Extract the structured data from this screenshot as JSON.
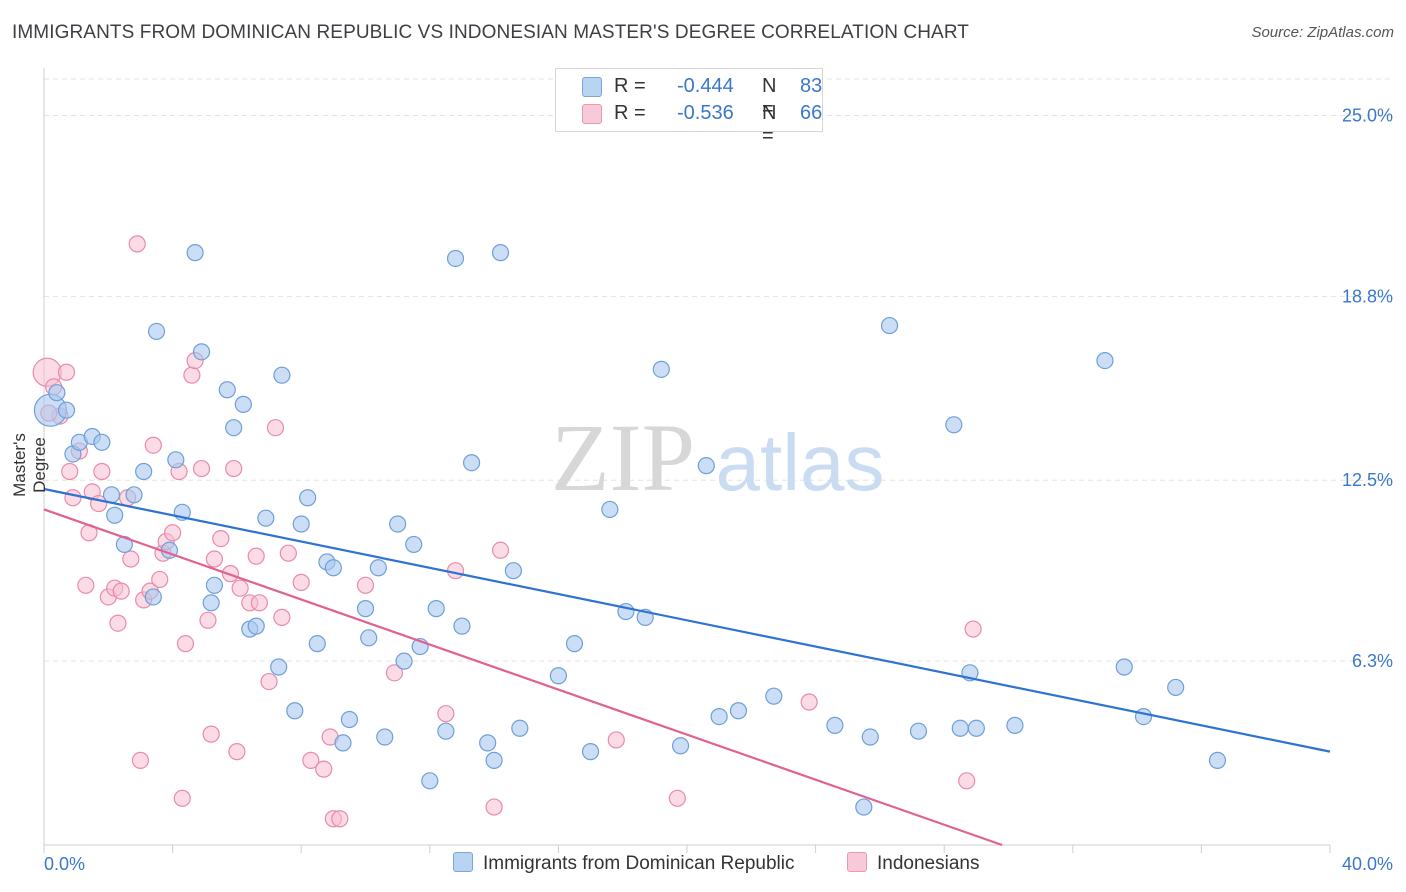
{
  "header": {
    "title": "IMMIGRANTS FROM DOMINICAN REPUBLIC VS INDONESIAN MASTER'S DEGREE CORRELATION CHART",
    "source": "Source: ZipAtlas.com"
  },
  "watermark": {
    "zip": "ZIP",
    "atlas": "atlas"
  },
  "legend": {
    "blue": {
      "r_label": "R =",
      "r_value": "-0.444",
      "n_label": "N =",
      "n_value": "83"
    },
    "pink": {
      "r_label": "R =",
      "r_value": "-0.536",
      "n_label": "N =",
      "n_value": "66"
    }
  },
  "colors": {
    "blue_fill": "#a9c8ee",
    "blue_stroke": "#6f9fd8",
    "blue_line": "#2e72d2",
    "pink_fill": "#f7bfd2",
    "pink_stroke": "#e98aab",
    "pink_line": "#e0628f",
    "grid": "#e3e3e3",
    "tick_text": "#3a78c9"
  },
  "chart_data": {
    "type": "scatter",
    "title": "IMMIGRANTS FROM DOMINICAN REPUBLIC VS INDONESIAN MASTER'S DEGREE CORRELATION CHART",
    "xlabel": "",
    "ylabel": "Master's Degree",
    "xlim": [
      0,
      40
    ],
    "ylim": [
      0,
      25.0
    ],
    "x_tick_labels": [
      "0.0%",
      "40.0%"
    ],
    "y_ticks": [
      6.3,
      12.5,
      18.8,
      25.0
    ],
    "y_tick_labels": [
      "6.3%",
      "12.5%",
      "18.8%",
      "25.0%"
    ],
    "grid": true,
    "legend_position": "top-center",
    "series": [
      {
        "name": "Immigrants from Dominican Republic",
        "r": -0.444,
        "n": 83,
        "trend": {
          "x": [
            0,
            40
          ],
          "y": [
            12.2,
            3.2
          ]
        },
        "points": [
          [
            0.2,
            14.9
          ],
          [
            0.4,
            15.5
          ],
          [
            0.7,
            14.9
          ],
          [
            0.9,
            13.4
          ],
          [
            1.1,
            13.8
          ],
          [
            1.5,
            14.0
          ],
          [
            1.8,
            13.8
          ],
          [
            2.1,
            12.0
          ],
          [
            2.2,
            11.3
          ],
          [
            2.5,
            10.3
          ],
          [
            2.8,
            12.0
          ],
          [
            3.1,
            12.8
          ],
          [
            3.4,
            8.5
          ],
          [
            3.5,
            17.6
          ],
          [
            3.9,
            10.1
          ],
          [
            4.1,
            13.2
          ],
          [
            4.3,
            11.4
          ],
          [
            4.7,
            20.3
          ],
          [
            4.9,
            16.9
          ],
          [
            5.2,
            8.3
          ],
          [
            5.3,
            8.9
          ],
          [
            5.7,
            15.6
          ],
          [
            5.9,
            14.3
          ],
          [
            6.2,
            15.1
          ],
          [
            6.4,
            7.4
          ],
          [
            6.6,
            7.5
          ],
          [
            6.9,
            11.2
          ],
          [
            7.3,
            6.1
          ],
          [
            7.4,
            16.1
          ],
          [
            7.8,
            4.6
          ],
          [
            8.0,
            11.0
          ],
          [
            8.2,
            11.9
          ],
          [
            8.5,
            6.9
          ],
          [
            8.8,
            9.7
          ],
          [
            9.0,
            9.5
          ],
          [
            9.3,
            3.5
          ],
          [
            9.5,
            4.3
          ],
          [
            10.0,
            8.1
          ],
          [
            10.1,
            7.1
          ],
          [
            10.4,
            9.5
          ],
          [
            10.6,
            3.7
          ],
          [
            11.0,
            11.0
          ],
          [
            11.2,
            6.3
          ],
          [
            11.5,
            10.3
          ],
          [
            11.7,
            6.8
          ],
          [
            12.0,
            2.2
          ],
          [
            12.2,
            8.1
          ],
          [
            12.5,
            3.9
          ],
          [
            12.8,
            20.1
          ],
          [
            13.0,
            7.5
          ],
          [
            13.3,
            13.1
          ],
          [
            13.8,
            3.5
          ],
          [
            14.0,
            2.9
          ],
          [
            14.2,
            20.3
          ],
          [
            14.6,
            9.4
          ],
          [
            14.8,
            4.0
          ],
          [
            16.0,
            5.8
          ],
          [
            16.5,
            6.9
          ],
          [
            17.0,
            3.2
          ],
          [
            17.6,
            11.5
          ],
          [
            18.1,
            8.0
          ],
          [
            18.7,
            7.8
          ],
          [
            19.2,
            16.3
          ],
          [
            19.8,
            3.4
          ],
          [
            20.6,
            13.0
          ],
          [
            21.0,
            4.4
          ],
          [
            21.6,
            4.6
          ],
          [
            22.7,
            5.1
          ],
          [
            24.6,
            4.1
          ],
          [
            25.5,
            1.3
          ],
          [
            25.7,
            3.7
          ],
          [
            26.3,
            17.8
          ],
          [
            27.2,
            3.9
          ],
          [
            28.3,
            14.4
          ],
          [
            28.5,
            4.0
          ],
          [
            28.8,
            5.9
          ],
          [
            29.0,
            4.0
          ],
          [
            30.2,
            4.1
          ],
          [
            33.0,
            16.6
          ],
          [
            33.6,
            6.1
          ],
          [
            34.2,
            4.4
          ],
          [
            35.2,
            5.4
          ],
          [
            36.5,
            2.9
          ]
        ]
      },
      {
        "name": "Indonesians",
        "r": -0.536,
        "n": 66,
        "trend": {
          "x": [
            0,
            29.8
          ],
          "y": [
            11.5,
            0.0
          ]
        },
        "points": [
          [
            0.1,
            16.2
          ],
          [
            0.3,
            15.7
          ],
          [
            0.5,
            14.7
          ],
          [
            0.7,
            16.2
          ],
          [
            0.8,
            12.8
          ],
          [
            0.9,
            11.9
          ],
          [
            1.1,
            13.5
          ],
          [
            1.3,
            8.9
          ],
          [
            1.4,
            10.7
          ],
          [
            1.5,
            12.1
          ],
          [
            1.7,
            11.7
          ],
          [
            1.8,
            12.8
          ],
          [
            2.0,
            8.5
          ],
          [
            2.2,
            8.8
          ],
          [
            2.3,
            7.6
          ],
          [
            2.4,
            8.7
          ],
          [
            2.6,
            11.9
          ],
          [
            2.7,
            9.8
          ],
          [
            2.9,
            20.6
          ],
          [
            3.0,
            2.9
          ],
          [
            3.1,
            8.4
          ],
          [
            3.3,
            8.7
          ],
          [
            3.4,
            13.7
          ],
          [
            3.6,
            9.1
          ],
          [
            3.7,
            10.0
          ],
          [
            3.8,
            10.4
          ],
          [
            4.0,
            10.7
          ],
          [
            4.2,
            12.8
          ],
          [
            4.4,
            6.9
          ],
          [
            4.6,
            16.1
          ],
          [
            4.7,
            16.6
          ],
          [
            4.9,
            12.9
          ],
          [
            5.1,
            7.7
          ],
          [
            5.2,
            3.8
          ],
          [
            5.3,
            9.8
          ],
          [
            5.5,
            10.5
          ],
          [
            5.8,
            9.3
          ],
          [
            5.9,
            12.9
          ],
          [
            6.0,
            3.2
          ],
          [
            6.1,
            8.8
          ],
          [
            6.4,
            8.3
          ],
          [
            6.6,
            9.9
          ],
          [
            6.7,
            8.3
          ],
          [
            7.0,
            5.6
          ],
          [
            7.2,
            14.3
          ],
          [
            7.4,
            7.8
          ],
          [
            7.6,
            10.0
          ],
          [
            8.0,
            9.0
          ],
          [
            8.3,
            2.9
          ],
          [
            8.7,
            2.6
          ],
          [
            8.9,
            3.7
          ],
          [
            9.0,
            0.9
          ],
          [
            9.2,
            0.9
          ],
          [
            10.0,
            8.9
          ],
          [
            10.9,
            5.9
          ],
          [
            12.5,
            4.5
          ],
          [
            12.8,
            9.4
          ],
          [
            14.2,
            10.1
          ],
          [
            4.3,
            1.6
          ],
          [
            14.0,
            1.3
          ],
          [
            17.8,
            3.6
          ],
          [
            19.7,
            1.6
          ],
          [
            23.8,
            4.9
          ],
          [
            28.7,
            2.2
          ],
          [
            28.9,
            7.4
          ],
          [
            0.15,
            14.8
          ]
        ]
      }
    ]
  }
}
